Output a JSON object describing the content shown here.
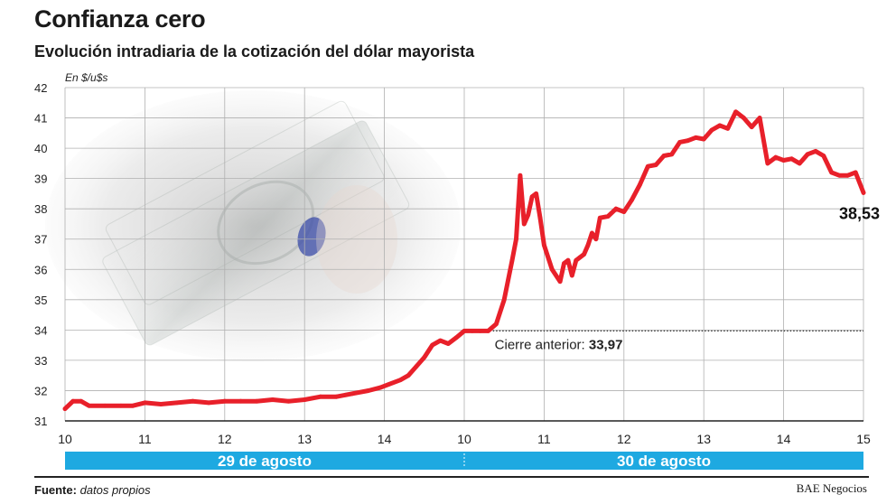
{
  "header": {
    "title": "Confianza cero",
    "subtitle": "Evolución intradiaria de la cotización del dólar mayorista"
  },
  "footer": {
    "source_label": "Fuente:",
    "source_text": "datos propios",
    "credit": "BAE Negocios"
  },
  "colors": {
    "line": "#e8202a",
    "banner": "#1ea9e1",
    "grid": "#b0b0b0",
    "reference": "#333333"
  },
  "chart_data": {
    "type": "line",
    "title": "Confianza cero",
    "subtitle": "Evolución intradiaria de la cotización del dólar mayorista",
    "ylabel": "En $/u$s",
    "xlabel": "",
    "ylim": [
      31,
      42
    ],
    "yticks": [
      31,
      32,
      33,
      34,
      35,
      36,
      37,
      38,
      39,
      40,
      41,
      42
    ],
    "xlim": [
      0,
      10
    ],
    "xticks": [
      {
        "x": 0,
        "label": "10"
      },
      {
        "x": 1,
        "label": "11"
      },
      {
        "x": 2,
        "label": "12"
      },
      {
        "x": 3,
        "label": "13"
      },
      {
        "x": 4,
        "label": "14"
      },
      {
        "x": 5,
        "label": "10"
      },
      {
        "x": 6,
        "label": "11"
      },
      {
        "x": 7,
        "label": "12"
      },
      {
        "x": 8,
        "label": "13"
      },
      {
        "x": 9,
        "label": "14"
      },
      {
        "x": 10,
        "label": "15"
      }
    ],
    "grid": true,
    "days": [
      {
        "label": "29 de agosto",
        "start": 0,
        "end": 5
      },
      {
        "label": "30 de agosto",
        "start": 5,
        "end": 10
      }
    ],
    "reference_line": {
      "value": 33.97,
      "label": "Cierre anterior: ",
      "value_label": "33,97",
      "from_x": 5.2
    },
    "end_label": "38,53",
    "series": [
      {
        "name": "",
        "x": [
          0,
          0.1,
          0.2,
          0.3,
          0.5,
          0.7,
          0.85,
          1.0,
          1.2,
          1.4,
          1.6,
          1.8,
          2.0,
          2.2,
          2.4,
          2.6,
          2.8,
          3.0,
          3.2,
          3.4,
          3.6,
          3.8,
          3.95,
          4.05,
          4.2,
          4.3,
          4.4,
          4.5,
          4.6,
          4.7,
          4.8,
          4.9,
          5.0,
          5.1,
          5.2,
          5.3,
          5.4,
          5.5,
          5.6,
          5.65,
          5.7,
          5.75,
          5.8,
          5.85,
          5.9,
          5.95,
          6.0,
          6.1,
          6.2,
          6.25,
          6.3,
          6.35,
          6.4,
          6.45,
          6.5,
          6.55,
          6.6,
          6.65,
          6.7,
          6.8,
          6.9,
          7.0,
          7.1,
          7.2,
          7.3,
          7.4,
          7.5,
          7.6,
          7.7,
          7.8,
          7.9,
          8.0,
          8.1,
          8.2,
          8.3,
          8.4,
          8.5,
          8.6,
          8.7,
          8.8,
          8.9,
          9.0,
          9.1,
          9.2,
          9.3,
          9.4,
          9.5,
          9.6,
          9.7,
          9.8,
          9.9,
          10.0
        ],
        "values": [
          31.4,
          31.65,
          31.65,
          31.5,
          31.5,
          31.5,
          31.5,
          31.6,
          31.55,
          31.6,
          31.65,
          31.6,
          31.65,
          31.65,
          31.65,
          31.7,
          31.65,
          31.7,
          31.8,
          31.8,
          31.9,
          32.0,
          32.1,
          32.2,
          32.35,
          32.5,
          32.8,
          33.1,
          33.5,
          33.65,
          33.55,
          33.75,
          33.97,
          33.97,
          33.97,
          33.97,
          34.2,
          35.0,
          36.3,
          37.0,
          39.1,
          37.5,
          37.8,
          38.4,
          38.5,
          37.7,
          36.8,
          36.0,
          35.6,
          36.2,
          36.3,
          35.8,
          36.3,
          36.4,
          36.5,
          36.8,
          37.2,
          37.0,
          37.7,
          37.75,
          38.0,
          37.9,
          38.3,
          38.8,
          39.4,
          39.45,
          39.75,
          39.8,
          40.2,
          40.25,
          40.35,
          40.3,
          40.6,
          40.75,
          40.65,
          41.2,
          41.0,
          40.7,
          41.0,
          39.5,
          39.7,
          39.6,
          39.65,
          39.5,
          39.8,
          39.9,
          39.75,
          39.2,
          39.1,
          39.1,
          39.2,
          38.53
        ]
      }
    ]
  }
}
